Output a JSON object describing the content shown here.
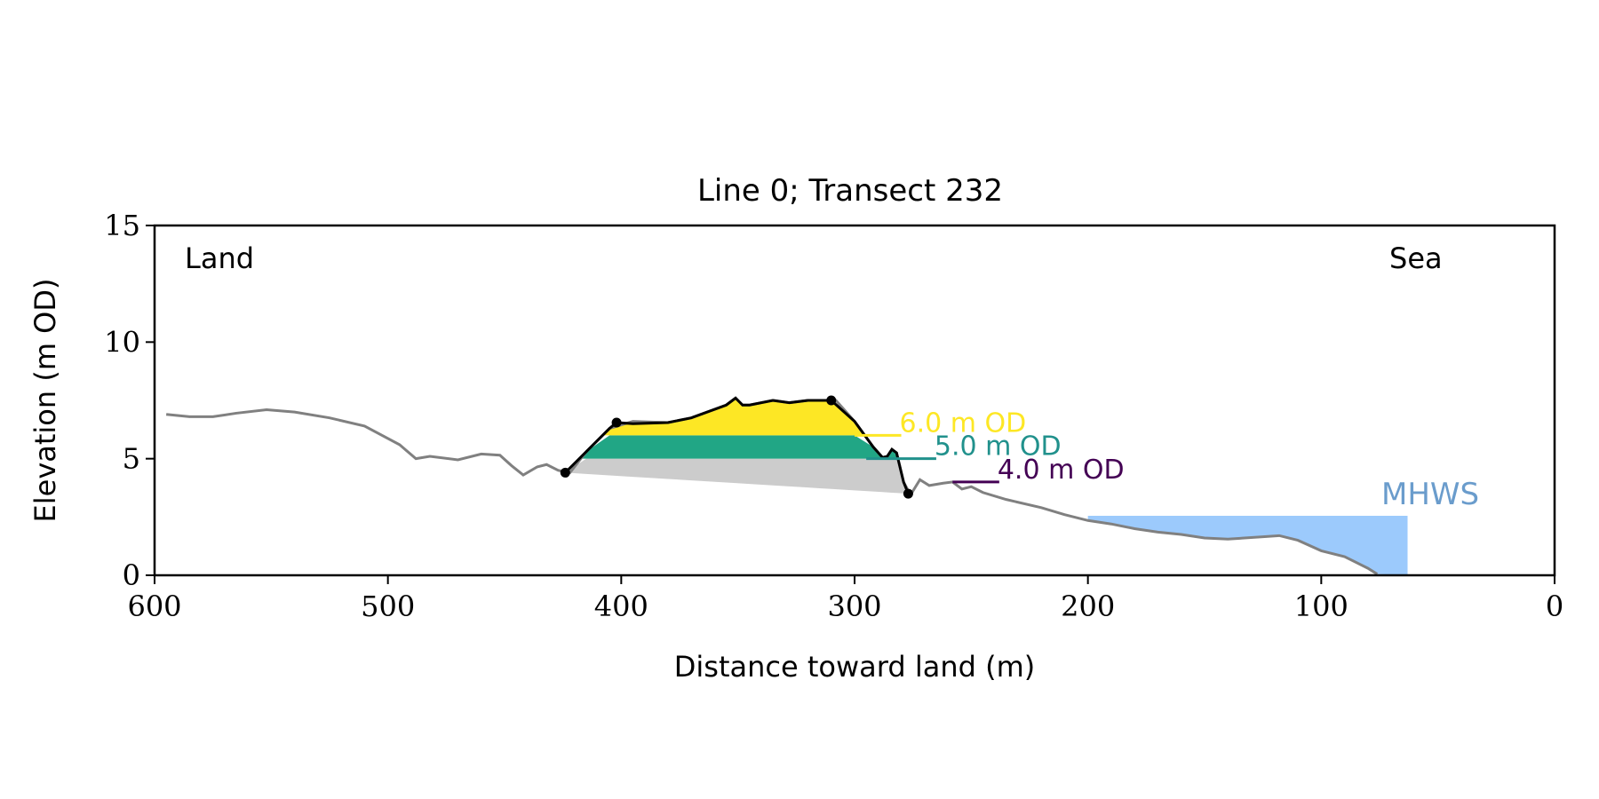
{
  "chart_data": {
    "type": "area",
    "title": "Line 0; Transect 232",
    "xlabel": "Distance toward land (m)",
    "ylabel": "Elevation (m OD)",
    "xlim": [
      600,
      0
    ],
    "ylim": [
      0,
      15
    ],
    "x_ticks": [
      "600",
      "500",
      "400",
      "300",
      "200",
      "100",
      "0"
    ],
    "y_ticks": [
      "0",
      "5",
      "10",
      "15"
    ],
    "grid": false,
    "annotations": {
      "land": "Land",
      "sea": "Sea",
      "mhws": "MHWS"
    },
    "colors": {
      "profile": "#808080",
      "dune_outline": "#000000",
      "base_fill": "#cccccc",
      "band_6": "#fde725",
      "band_5": "#21a685",
      "level_6_line": "#fde725",
      "level_5_line": "#21918c",
      "level_4_line": "#440154",
      "mhws": "#9ccafc",
      "mhws_label": "#6a9ccc"
    },
    "profile": {
      "x": [
        595,
        585,
        575,
        565,
        552,
        540,
        525,
        510,
        495,
        488,
        482,
        470,
        460,
        452,
        447,
        442,
        436,
        432,
        427,
        422,
        415,
        405,
        395,
        380,
        370,
        355,
        351,
        348,
        345,
        335,
        328,
        320,
        315,
        308,
        300,
        292,
        288,
        286,
        284,
        282,
        279,
        276,
        272,
        268,
        262,
        258,
        254,
        250,
        245,
        235,
        220,
        210,
        200,
        190,
        180,
        170,
        160,
        150,
        140,
        125,
        118,
        110,
        100,
        90,
        80,
        76
      ],
      "y": [
        6.9,
        6.8,
        6.8,
        6.95,
        7.1,
        7.0,
        6.75,
        6.4,
        5.6,
        5.0,
        5.1,
        4.95,
        5.2,
        5.15,
        4.7,
        4.3,
        4.65,
        4.75,
        4.5,
        4.4,
        5.3,
        6.3,
        6.6,
        6.55,
        6.75,
        7.3,
        7.6,
        7.3,
        7.3,
        7.5,
        7.4,
        7.5,
        7.5,
        7.5,
        6.6,
        5.5,
        5.05,
        5.1,
        5.4,
        5.25,
        4.0,
        3.45,
        4.1,
        3.85,
        3.95,
        4.0,
        3.7,
        3.8,
        3.55,
        3.25,
        2.9,
        2.6,
        2.35,
        2.2,
        2.0,
        1.85,
        1.75,
        1.6,
        1.55,
        1.65,
        1.7,
        1.5,
        1.05,
        0.8,
        0.3,
        0.05
      ]
    },
    "dune": {
      "x": [
        424,
        415,
        405,
        402,
        395,
        380,
        370,
        355,
        351,
        348,
        345,
        335,
        328,
        320,
        315,
        310,
        300,
        292,
        288,
        286,
        284,
        282,
        279,
        277
      ],
      "y": [
        4.4,
        5.3,
        6.3,
        6.55,
        6.5,
        6.55,
        6.75,
        7.3,
        7.6,
        7.3,
        7.3,
        7.5,
        7.4,
        7.5,
        7.5,
        7.5,
        6.6,
        5.5,
        5.05,
        5.1,
        5.4,
        5.25,
        4.0,
        3.5
      ]
    },
    "dune_points": {
      "x": [
        424,
        402,
        310,
        277
      ],
      "y": [
        4.4,
        6.55,
        7.5,
        3.5
      ]
    },
    "levels": [
      {
        "label": "6.0 m OD",
        "value": 6.0,
        "x_start": 280,
        "x_end": 300
      },
      {
        "label": "5.0 m OD",
        "value": 5.0,
        "x_start": 265,
        "x_end": 295
      },
      {
        "label": "4.0 m OD",
        "value": 4.0,
        "x_start": 238,
        "x_end": 258
      }
    ],
    "mhws": {
      "level": 2.55,
      "x_from": 200,
      "x_to": 63
    }
  }
}
